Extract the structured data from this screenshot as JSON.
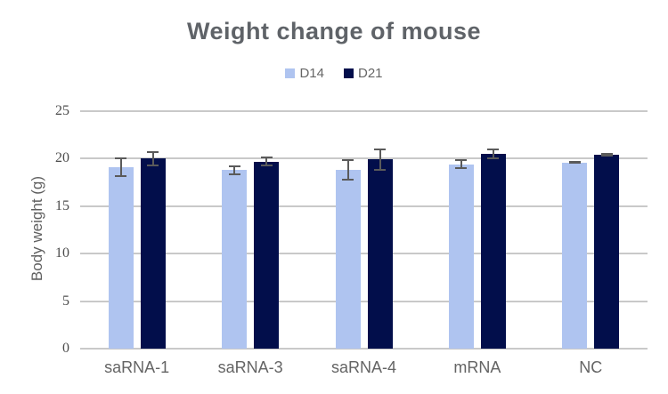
{
  "chart_data": {
    "type": "bar",
    "title": "Weight change of mouse",
    "xlabel": "",
    "ylabel": "Body weight (g)",
    "categories": [
      "saRNA-1",
      "saRNA-3",
      "saRNA-4",
      "mRNA",
      "NC"
    ],
    "series": [
      {
        "name": "D14",
        "color": "#AFC4F0",
        "values": [
          19.1,
          18.8,
          18.8,
          19.4,
          19.6
        ],
        "errors": [
          1.0,
          0.5,
          1.1,
          0.5,
          0.15
        ]
      },
      {
        "name": "D21",
        "color": "#020E4B",
        "values": [
          20.0,
          19.7,
          19.9,
          20.5,
          20.4
        ],
        "errors": [
          0.8,
          0.5,
          1.2,
          0.6,
          0.2
        ]
      }
    ],
    "ylim": [
      0,
      25
    ],
    "yticks": [
      0,
      5,
      10,
      15,
      20,
      25
    ],
    "grid": true,
    "legend_position": "top",
    "gridline_color": "#C9C9C9",
    "error_bar_color": "#5A5A5A",
    "background_color": "#FFFFFF",
    "title_color": "#5F6368",
    "text_color": "#646464"
  }
}
